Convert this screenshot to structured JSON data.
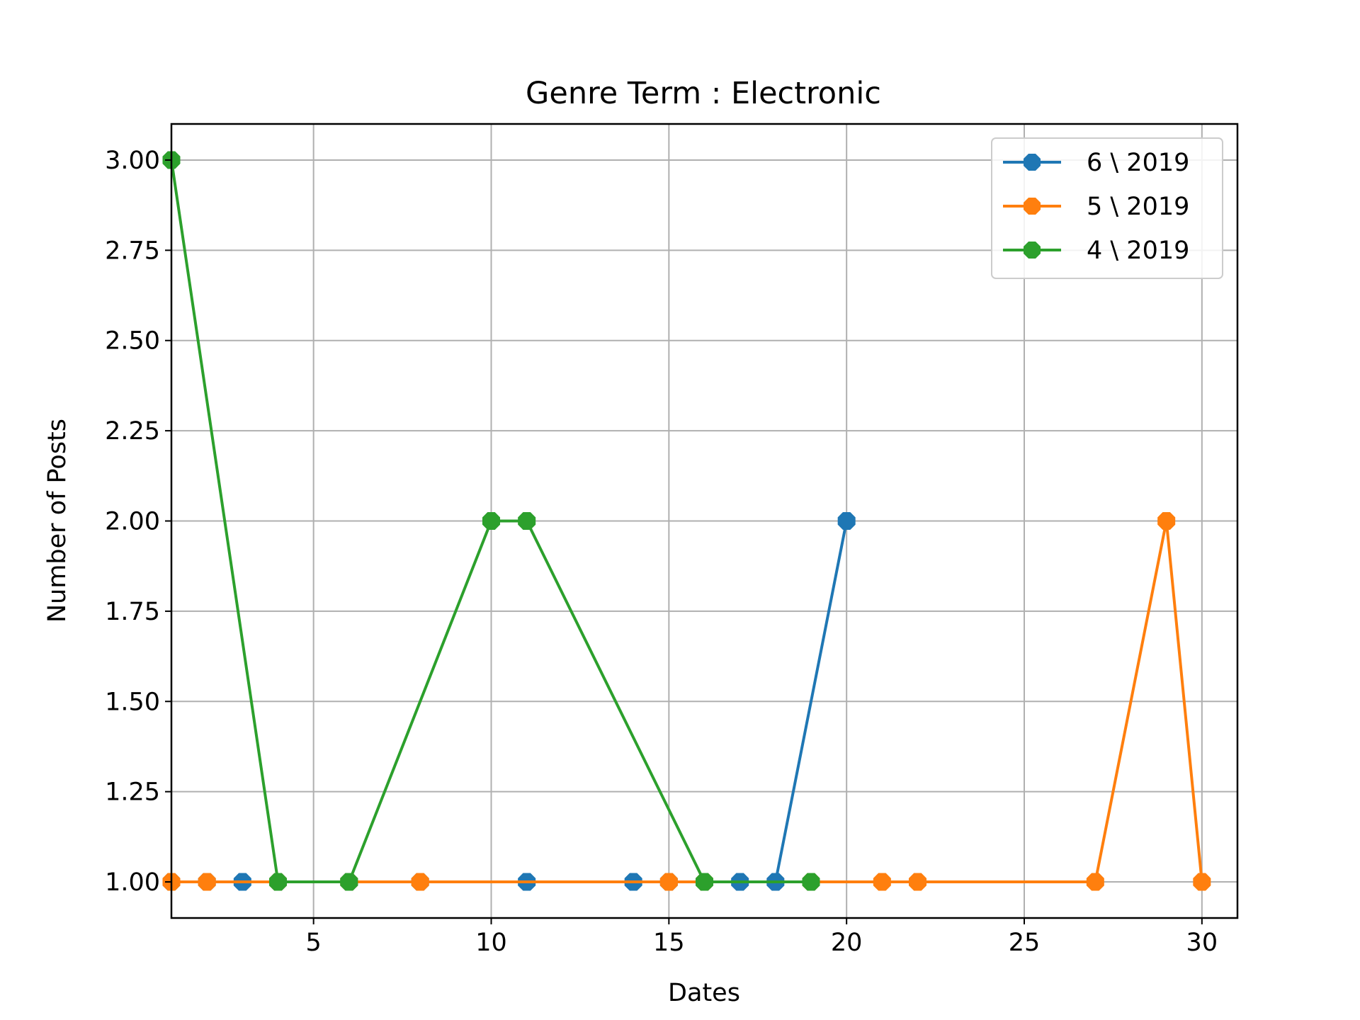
{
  "chart_data": {
    "type": "line",
    "title": "Genre Term : Electronic",
    "xlabel": "Dates",
    "ylabel": "Number of Posts",
    "xlim": [
      1,
      31
    ],
    "ylim": [
      0.9,
      3.1
    ],
    "xticks": [
      5,
      10,
      15,
      20,
      25,
      30
    ],
    "yticks": [
      1.0,
      1.25,
      1.5,
      1.75,
      2.0,
      2.25,
      2.5,
      2.75,
      3.0
    ],
    "ytick_labels": [
      "1.00",
      "1.25",
      "1.50",
      "1.75",
      "2.00",
      "2.25",
      "2.50",
      "2.75",
      "3.00"
    ],
    "grid": true,
    "legend_position": "top-right",
    "series": [
      {
        "name": "6 \\ 2019",
        "color": "#1f77b4",
        "marker": "octagon",
        "x": [
          1,
          2,
          3,
          4,
          6,
          8,
          11,
          14,
          15,
          16,
          17,
          18,
          20
        ],
        "y": [
          1,
          1,
          1,
          1,
          1,
          1,
          1,
          1,
          1,
          1,
          1,
          1,
          2
        ]
      },
      {
        "name": "5 \\ 2019",
        "color": "#ff7f0e",
        "marker": "octagon",
        "x": [
          1,
          2,
          4,
          6,
          8,
          15,
          16,
          19,
          21,
          22,
          27,
          29,
          30
        ],
        "y": [
          1,
          1,
          1,
          1,
          1,
          1,
          1,
          1,
          1,
          1,
          1,
          2,
          1
        ]
      },
      {
        "name": "4 \\ 2019",
        "color": "#2ca02c",
        "marker": "octagon",
        "x": [
          1,
          4,
          6,
          10,
          11,
          16,
          19
        ],
        "y": [
          3,
          1,
          1,
          2,
          2,
          1,
          1
        ]
      }
    ]
  }
}
